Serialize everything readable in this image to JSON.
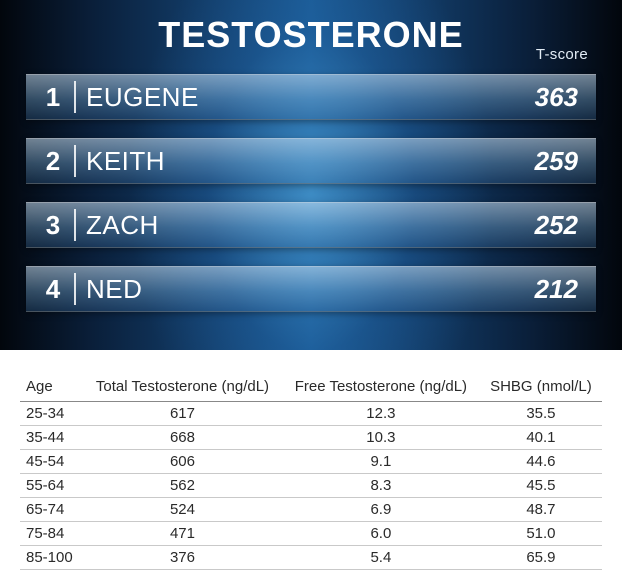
{
  "panel": {
    "title": "TESTOSTERONE",
    "score_label": "T-score",
    "title_color": "#ffffff",
    "row_text_color": "#ffffff",
    "background_gradient": [
      "#02060c",
      "#0a1f3a",
      "#13406e",
      "#1a5a94"
    ],
    "row_gradient": [
      "rgba(200,225,245,0.55)",
      "rgba(120,170,210,0.40)",
      "rgba(60,110,160,0.30)"
    ],
    "title_fontsize": 36,
    "name_fontsize": 26,
    "score_fontsize": 26,
    "rows": [
      {
        "rank": "1",
        "name": "EUGENE",
        "score": "363"
      },
      {
        "rank": "2",
        "name": "KEITH",
        "score": "259"
      },
      {
        "rank": "3",
        "name": "ZACH",
        "score": "252"
      },
      {
        "rank": "4",
        "name": "NED",
        "score": "212"
      }
    ]
  },
  "table": {
    "type": "table",
    "header_border_color": "#888888",
    "row_border_color": "#c9c9c9",
    "text_color": "#2a2a2a",
    "fontsize": 15,
    "columns": [
      {
        "label": "Age",
        "align": "left"
      },
      {
        "label": "Total Testosterone (ng/dL)",
        "align": "center"
      },
      {
        "label": "Free Testosterone (ng/dL)",
        "align": "center"
      },
      {
        "label": "SHBG (nmol/L)",
        "align": "center"
      }
    ],
    "rows": [
      [
        "25-34",
        "617",
        "12.3",
        "35.5"
      ],
      [
        "35-44",
        "668",
        "10.3",
        "40.1"
      ],
      [
        "45-54",
        "606",
        "9.1",
        "44.6"
      ],
      [
        "55-64",
        "562",
        "8.3",
        "45.5"
      ],
      [
        "65-74",
        "524",
        "6.9",
        "48.7"
      ],
      [
        "75-84",
        "471",
        "6.0",
        "51.0"
      ],
      [
        "85-100",
        "376",
        "5.4",
        "65.9"
      ]
    ]
  }
}
